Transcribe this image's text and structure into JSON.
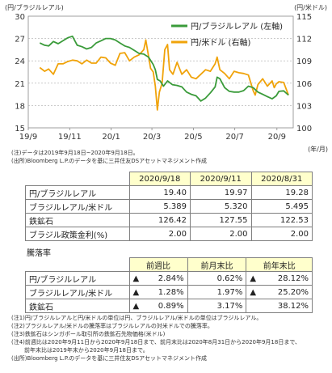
{
  "chart_data": {
    "type": "line",
    "ylabel_left": "(円/ブラジルレアル)",
    "ylabel_right": "(円/米ドル)",
    "xunit": "(年/月)",
    "y_left": {
      "min": 15,
      "max": 30,
      "ticks": [
        15,
        18,
        21,
        24,
        27,
        30
      ]
    },
    "y_right": {
      "min": 100,
      "max": 115,
      "ticks": [
        100,
        103,
        106,
        109,
        112,
        115
      ]
    },
    "x_ticks": [
      {
        "label": "19/9",
        "date": "2019-09-01"
      },
      {
        "label": "19/11",
        "date": "2019-11-01"
      },
      {
        "label": "20/1",
        "date": "2020-01-01"
      },
      {
        "label": "20/3",
        "date": "2020-03-01"
      },
      {
        "label": "20/5",
        "date": "2020-05-01"
      },
      {
        "label": "20/7",
        "date": "2020-07-01"
      },
      {
        "label": "20/9",
        "date": "2020-09-01"
      }
    ],
    "series": [
      {
        "name": "円/ブラジルレアル (左軸)",
        "axis": "left",
        "color": "#3a9b3a",
        "points": [
          [
            "2019-09-18",
            26.4
          ],
          [
            "2019-09-25",
            26.1
          ],
          [
            "2019-10-01",
            26.0
          ],
          [
            "2019-10-08",
            26.6
          ],
          [
            "2019-10-15",
            26.3
          ],
          [
            "2019-10-22",
            26.7
          ],
          [
            "2019-10-29",
            27.1
          ],
          [
            "2019-11-05",
            27.3
          ],
          [
            "2019-11-12",
            26.1
          ],
          [
            "2019-11-19",
            25.9
          ],
          [
            "2019-11-26",
            25.6
          ],
          [
            "2019-12-03",
            25.8
          ],
          [
            "2019-12-10",
            26.4
          ],
          [
            "2019-12-17",
            26.7
          ],
          [
            "2019-12-24",
            27.0
          ],
          [
            "2019-12-31",
            27.0
          ],
          [
            "2020-01-07",
            26.8
          ],
          [
            "2020-01-14",
            26.4
          ],
          [
            "2020-01-21",
            26.0
          ],
          [
            "2020-01-28",
            25.8
          ],
          [
            "2020-02-04",
            25.4
          ],
          [
            "2020-02-11",
            25.0
          ],
          [
            "2020-02-18",
            24.9
          ],
          [
            "2020-02-25",
            24.5
          ],
          [
            "2020-03-03",
            23.5
          ],
          [
            "2020-03-06",
            22.8
          ],
          [
            "2020-03-09",
            21.5
          ],
          [
            "2020-03-13",
            21.3
          ],
          [
            "2020-03-18",
            20.6
          ],
          [
            "2020-03-24",
            21.3
          ],
          [
            "2020-03-31",
            20.8
          ],
          [
            "2020-04-07",
            20.7
          ],
          [
            "2020-04-14",
            20.5
          ],
          [
            "2020-04-21",
            19.8
          ],
          [
            "2020-04-28",
            19.5
          ],
          [
            "2020-05-05",
            19.3
          ],
          [
            "2020-05-12",
            18.6
          ],
          [
            "2020-05-19",
            19.0
          ],
          [
            "2020-05-26",
            19.7
          ],
          [
            "2020-06-02",
            20.5
          ],
          [
            "2020-06-05",
            21.8
          ],
          [
            "2020-06-09",
            21.6
          ],
          [
            "2020-06-16",
            20.4
          ],
          [
            "2020-06-23",
            19.9
          ],
          [
            "2020-06-30",
            19.8
          ],
          [
            "2020-07-07",
            19.8
          ],
          [
            "2020-07-14",
            20.0
          ],
          [
            "2020-07-21",
            20.6
          ],
          [
            "2020-07-28",
            20.4
          ],
          [
            "2020-08-04",
            19.8
          ],
          [
            "2020-08-11",
            19.5
          ],
          [
            "2020-08-18",
            19.2
          ],
          [
            "2020-08-25",
            18.9
          ],
          [
            "2020-08-31",
            19.3
          ],
          [
            "2020-09-04",
            19.9
          ],
          [
            "2020-09-11",
            19.97
          ],
          [
            "2020-09-18",
            19.4
          ]
        ]
      },
      {
        "name": "円/米ドル (右軸)",
        "axis": "right",
        "color": "#f0a30a",
        "points": [
          [
            "2019-09-18",
            108.1
          ],
          [
            "2019-09-25",
            107.6
          ],
          [
            "2019-10-01",
            107.9
          ],
          [
            "2019-10-08",
            107.2
          ],
          [
            "2019-10-15",
            108.6
          ],
          [
            "2019-10-22",
            108.6
          ],
          [
            "2019-10-29",
            108.9
          ],
          [
            "2019-11-05",
            109.1
          ],
          [
            "2019-11-12",
            109.0
          ],
          [
            "2019-11-19",
            108.6
          ],
          [
            "2019-11-26",
            109.1
          ],
          [
            "2019-12-03",
            108.7
          ],
          [
            "2019-12-10",
            108.7
          ],
          [
            "2019-12-17",
            109.5
          ],
          [
            "2019-12-24",
            109.4
          ],
          [
            "2019-12-31",
            108.7
          ],
          [
            "2020-01-07",
            108.4
          ],
          [
            "2020-01-14",
            110.0
          ],
          [
            "2020-01-21",
            110.1
          ],
          [
            "2020-01-28",
            109.0
          ],
          [
            "2020-02-04",
            109.5
          ],
          [
            "2020-02-11",
            109.8
          ],
          [
            "2020-02-18",
            110.5
          ],
          [
            "2020-02-21",
            111.8
          ],
          [
            "2020-02-28",
            108.0
          ],
          [
            "2020-03-03",
            107.5
          ],
          [
            "2020-03-06",
            105.6
          ],
          [
            "2020-03-09",
            102.4
          ],
          [
            "2020-03-12",
            104.8
          ],
          [
            "2020-03-16",
            106.0
          ],
          [
            "2020-03-20",
            110.5
          ],
          [
            "2020-03-24",
            111.2
          ],
          [
            "2020-03-27",
            107.8
          ],
          [
            "2020-04-01",
            107.2
          ],
          [
            "2020-04-07",
            108.8
          ],
          [
            "2020-04-14",
            107.2
          ],
          [
            "2020-04-21",
            107.8
          ],
          [
            "2020-04-28",
            106.8
          ],
          [
            "2020-05-05",
            106.6
          ],
          [
            "2020-05-12",
            107.2
          ],
          [
            "2020-05-19",
            107.8
          ],
          [
            "2020-05-26",
            107.6
          ],
          [
            "2020-06-02",
            108.6
          ],
          [
            "2020-06-05",
            109.5
          ],
          [
            "2020-06-09",
            107.8
          ],
          [
            "2020-06-16",
            107.3
          ],
          [
            "2020-06-23",
            106.6
          ],
          [
            "2020-06-30",
            107.6
          ],
          [
            "2020-07-07",
            107.4
          ],
          [
            "2020-07-14",
            107.3
          ],
          [
            "2020-07-21",
            107.1
          ],
          [
            "2020-07-28",
            105.0
          ],
          [
            "2020-07-31",
            104.4
          ],
          [
            "2020-08-04",
            105.8
          ],
          [
            "2020-08-11",
            106.6
          ],
          [
            "2020-08-18",
            105.6
          ],
          [
            "2020-08-25",
            106.3
          ],
          [
            "2020-08-28",
            105.4
          ],
          [
            "2020-08-31",
            105.9
          ],
          [
            "2020-09-04",
            106.2
          ],
          [
            "2020-09-11",
            106.1
          ],
          [
            "2020-09-18",
            104.4
          ]
        ]
      }
    ]
  },
  "notes_chart": [
    "(注)データは2019年9月18日~2020年9月18日。",
    "(出所)Bloomberg L.P.のデータを基に三井住友DSアセットマネジメント作成"
  ],
  "table1": {
    "headers": [
      "2020/9/18",
      "2020/9/11",
      "2020/8/31"
    ],
    "rows": [
      {
        "label": "円/ブラジルレアル",
        "values": [
          "19.40",
          "19.97",
          "19.28"
        ]
      },
      {
        "label": "ブラジルレアル/米ドル",
        "values": [
          "5.389",
          "5.320",
          "5.495"
        ]
      },
      {
        "label": "鉄鉱石",
        "values": [
          "126.42",
          "127.55",
          "122.53"
        ]
      },
      {
        "label": "ブラジル政策金利(%)",
        "values": [
          "2.00",
          "2.00",
          "2.00"
        ]
      }
    ]
  },
  "section_title": "騰落率",
  "table2": {
    "headers": [
      "前週比",
      "前月末比",
      "前年末比"
    ],
    "rows": [
      {
        "label": "円/ブラジルレアル",
        "values": [
          {
            "sign": "▲",
            "v": "2.84%"
          },
          {
            "sign": "",
            "v": "0.62%"
          },
          {
            "sign": "▲",
            "v": "28.12%"
          }
        ]
      },
      {
        "label": "ブラジルレアル/米ドル",
        "values": [
          {
            "sign": "▲",
            "v": "1.28%"
          },
          {
            "sign": "",
            "v": "1.97%"
          },
          {
            "sign": "▲",
            "v": "25.20%"
          }
        ]
      },
      {
        "label": "鉄鉱石",
        "values": [
          {
            "sign": "▲",
            "v": "0.89%"
          },
          {
            "sign": "",
            "v": "3.17%"
          },
          {
            "sign": "",
            "v": "38.12%"
          }
        ]
      }
    ]
  },
  "notes_table": [
    "(注1)円/ブラジルレアルと円/米ドルの単位は円、ブラジルレアル/米ドルの単位はブラジルレアル。",
    "(注2)ブラジルレアル/米ドルの騰落率はブラジルレアルの対米ドルでの騰落率。",
    "(注3)鉄鉱石はシンガポール取引所の鉄鉱石先物価格(米ドル)",
    "(注4)前週比は2020年9月11日から2020年9月18日まで、前月末比は2020年8月31日から2020年9月18日まで、",
    "前年末比は2019年末から2020年9月18日まで。",
    "(出所)Bloomberg L.P.のデータを基に三井住友DSアセットマネジメント作成"
  ]
}
